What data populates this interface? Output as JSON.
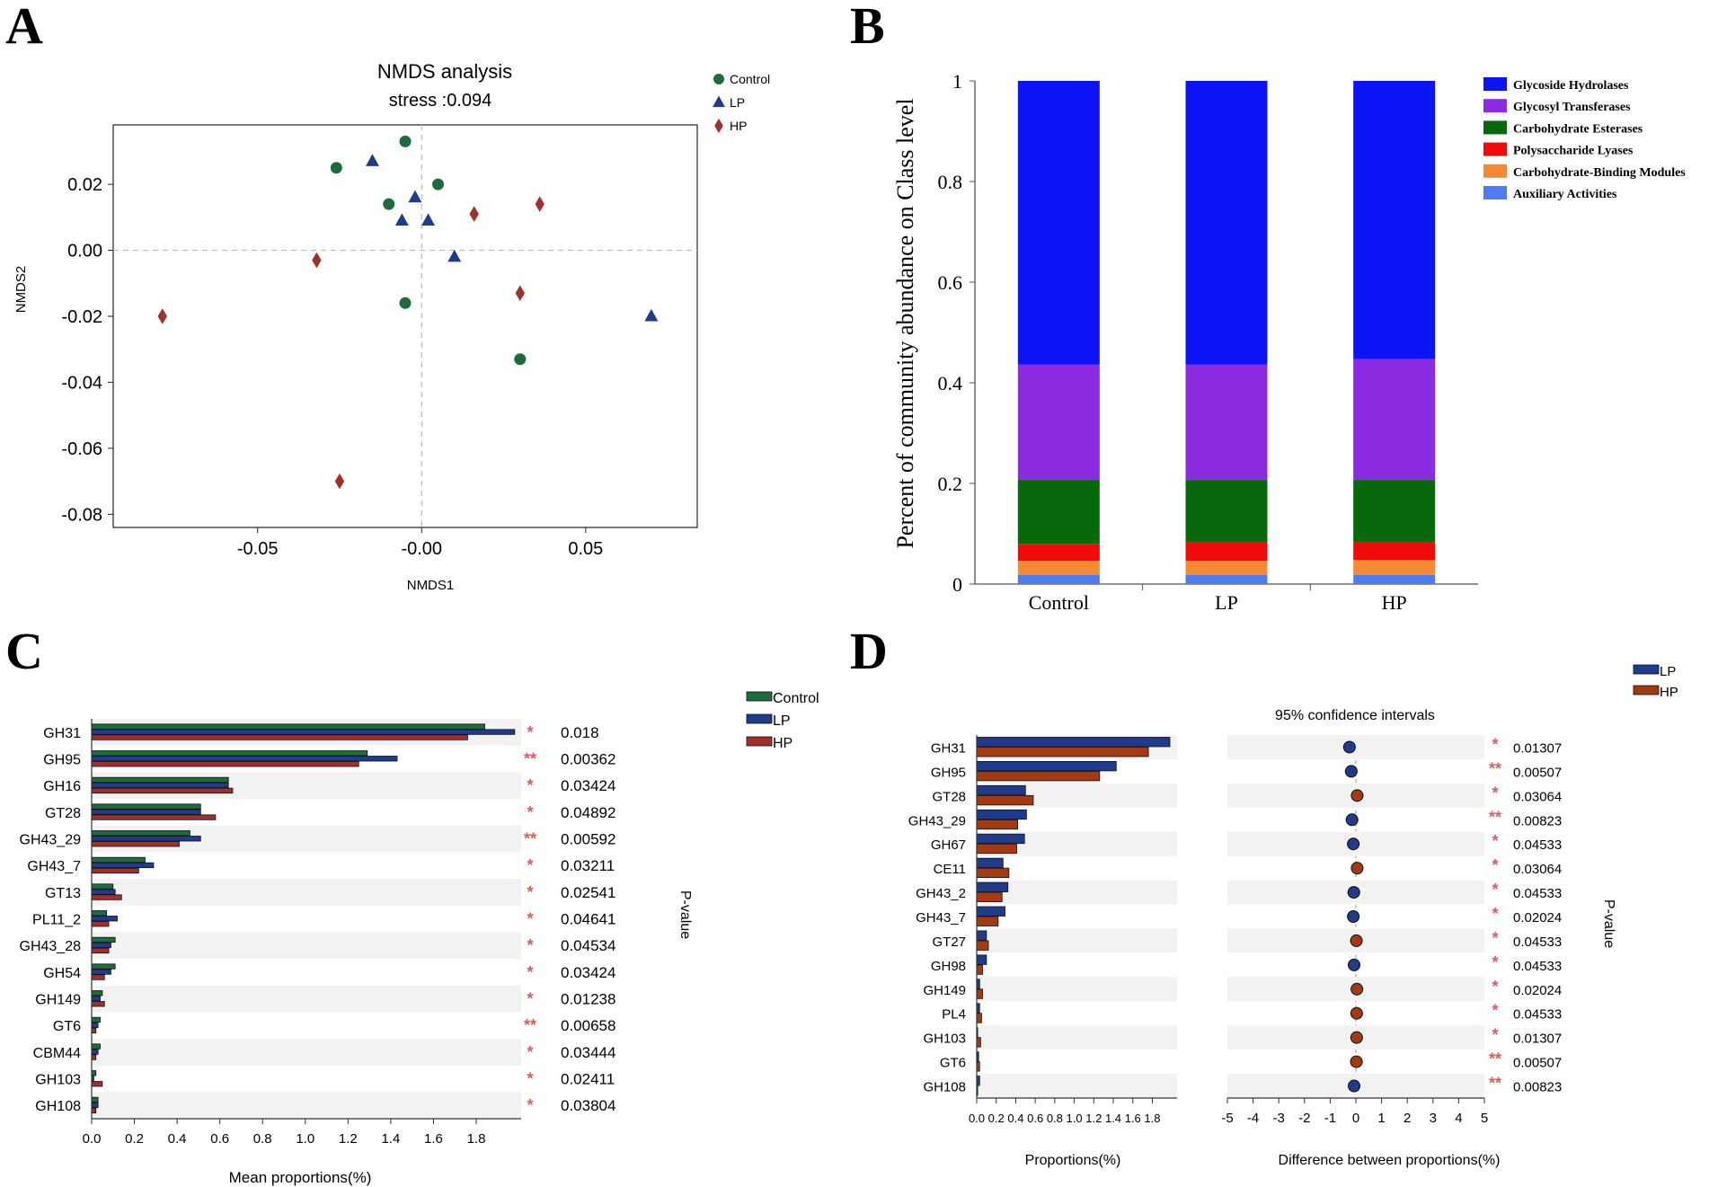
{
  "panels": {
    "a": "A",
    "b": "B",
    "c": "C",
    "d": "D"
  },
  "colors": {
    "control": "#1e6b3c",
    "lp": "#1f3b8c",
    "hp": "#a0302b",
    "hp_d": "#a33a12",
    "star": "#e05a5a",
    "band": "#f2f2f2"
  },
  "chart_data": [
    {
      "id": "A",
      "type": "scatter",
      "title": "NMDS analysis",
      "subtitle": "stress :0.094",
      "xlabel": "NMDS1",
      "ylabel": "NMDS2",
      "xlim": [
        -0.094,
        0.084
      ],
      "ylim": [
        -0.084,
        0.038
      ],
      "xticks": [
        -0.05,
        0,
        0.05
      ],
      "xtick_labels": [
        "-0.05",
        "-0.00",
        "0.05"
      ],
      "yticks": [
        0.02,
        0,
        -0.02,
        -0.04,
        -0.06,
        -0.08
      ],
      "ytick_labels": [
        "0.02",
        "0.00",
        "-0.02",
        "-0.04",
        "-0.06",
        "-0.08"
      ],
      "legend": [
        "Control",
        "LP",
        "HP"
      ],
      "series": [
        {
          "name": "Control",
          "points": [
            [
              -0.026,
              0.025
            ],
            [
              -0.005,
              0.033
            ],
            [
              -0.01,
              0.014
            ],
            [
              0.005,
              0.02
            ],
            [
              -0.005,
              -0.016
            ],
            [
              0.03,
              -0.033
            ]
          ]
        },
        {
          "name": "LP",
          "points": [
            [
              -0.015,
              0.027
            ],
            [
              -0.002,
              0.016
            ],
            [
              -0.006,
              0.009
            ],
            [
              0.002,
              0.009
            ],
            [
              0.01,
              -0.002
            ],
            [
              0.07,
              -0.02
            ]
          ]
        },
        {
          "name": "HP",
          "points": [
            [
              -0.079,
              -0.02
            ],
            [
              -0.032,
              -0.003
            ],
            [
              -0.025,
              -0.07
            ],
            [
              0.016,
              0.011
            ],
            [
              0.036,
              0.014
            ],
            [
              0.03,
              -0.013
            ]
          ]
        }
      ]
    },
    {
      "id": "B",
      "type": "bar",
      "stacked": true,
      "ylabel": "Percent of community abundance on Class level",
      "ylim": [
        0,
        1
      ],
      "yticks": [
        0,
        0.2,
        0.4,
        0.6,
        0.8,
        1
      ],
      "ytick_labels": [
        "0",
        "0.2",
        "0.4",
        "0.6",
        "0.8",
        "1"
      ],
      "categories": [
        "Control",
        "LP",
        "HP"
      ],
      "series": [
        {
          "name": "Auxiliary Activities",
          "color": "#4d7cf0",
          "values": [
            0.018,
            0.018,
            0.018
          ]
        },
        {
          "name": "Carbohydrate-Binding Modules",
          "color": "#f58a32",
          "values": [
            0.028,
            0.028,
            0.03
          ]
        },
        {
          "name": "Polysaccharide Lyases",
          "color": "#f00a0a",
          "values": [
            0.034,
            0.038,
            0.036
          ]
        },
        {
          "name": "Carbohydrate Esterases",
          "color": "#07690b",
          "values": [
            0.127,
            0.123,
            0.123
          ]
        },
        {
          "name": "Glycosyl Transferases",
          "color": "#8a2be2",
          "values": [
            0.229,
            0.229,
            0.24
          ]
        },
        {
          "name": "Glycoside Hydrolases",
          "color": "#0b14f5",
          "values": [
            0.564,
            0.564,
            0.553
          ]
        }
      ]
    },
    {
      "id": "C",
      "type": "bar",
      "orientation": "horizontal",
      "xlabel": "Mean proportions(%)",
      "pvalue_label": "P-value",
      "xlim": [
        0,
        2.0
      ],
      "xticks": [
        0,
        0.2,
        0.4,
        0.6,
        0.8,
        1.0,
        1.2,
        1.4,
        1.6,
        1.8
      ],
      "xtick_labels": [
        "0.0",
        "0.2",
        "0.4",
        "0.6",
        "0.8",
        "1.0",
        "1.2",
        "1.4",
        "1.6",
        "1.8"
      ],
      "legend": [
        "Control",
        "LP",
        "HP"
      ],
      "categories": [
        "GH31",
        "GH95",
        "GH16",
        "GT28",
        "GH43_29",
        "GH43_7",
        "GT13",
        "PL11_2",
        "GH43_28",
        "GH54",
        "GH149",
        "GT6",
        "CBM44",
        "GH103",
        "GH108"
      ],
      "series": [
        {
          "name": "Control",
          "values": [
            1.84,
            1.29,
            0.64,
            0.51,
            0.46,
            0.25,
            0.1,
            0.07,
            0.11,
            0.11,
            0.05,
            0.04,
            0.04,
            0.02,
            0.03
          ]
        },
        {
          "name": "LP",
          "values": [
            1.98,
            1.43,
            0.64,
            0.51,
            0.51,
            0.29,
            0.11,
            0.12,
            0.09,
            0.09,
            0.04,
            0.03,
            0.03,
            0.01,
            0.03
          ]
        },
        {
          "name": "HP",
          "values": [
            1.76,
            1.25,
            0.66,
            0.58,
            0.41,
            0.22,
            0.14,
            0.08,
            0.08,
            0.06,
            0.06,
            0.02,
            0.02,
            0.05,
            0.02
          ]
        }
      ],
      "stars": [
        "*",
        "**",
        "*",
        "*",
        "**",
        "*",
        "*",
        "*",
        "*",
        "*",
        "*",
        "**",
        "*",
        "*",
        "*"
      ],
      "pvalues": [
        "0.018",
        "0.00362",
        "0.03424",
        "0.04892",
        "0.00592",
        "0.03211",
        "0.02541",
        "0.04641",
        "0.04534",
        "0.03424",
        "0.01238",
        "0.00658",
        "0.03444",
        "0.02411",
        "0.03804"
      ]
    },
    {
      "id": "D",
      "type": "bar",
      "orientation": "horizontal",
      "xlabel": "Proportions(%)",
      "xlim": [
        0,
        2.0
      ],
      "xticks": [
        0,
        0.2,
        0.4,
        0.6,
        0.8,
        1.0,
        1.2,
        1.4,
        1.6,
        1.8
      ],
      "xtick_labels": [
        "0.0",
        "0.2",
        "0.4",
        "0.6",
        "0.8",
        "1.0",
        "1.2",
        "1.4",
        "1.6",
        "1.8"
      ],
      "legend": [
        "LP",
        "HP"
      ],
      "categories": [
        "GH31",
        "GH95",
        "GT28",
        "GH43_29",
        "GH67",
        "CE11",
        "GH43_2",
        "GH43_7",
        "GT27",
        "GH98",
        "GH149",
        "PL4",
        "GH103",
        "GT6",
        "GH108"
      ],
      "series": [
        {
          "name": "LP",
          "values": [
            1.98,
            1.43,
            0.5,
            0.51,
            0.49,
            0.27,
            0.32,
            0.29,
            0.1,
            0.1,
            0.03,
            0.03,
            0.01,
            0.02,
            0.03
          ]
        },
        {
          "name": "HP",
          "values": [
            1.76,
            1.26,
            0.58,
            0.42,
            0.41,
            0.33,
            0.26,
            0.22,
            0.12,
            0.06,
            0.06,
            0.05,
            0.04,
            0.03,
            0.01
          ]
        }
      ],
      "ci": {
        "title": "95% confidence intervals",
        "xlabel": "Difference between proportions(%)",
        "xlim": [
          -5,
          5
        ],
        "xticks": [
          -5,
          -4,
          -3,
          -2,
          -1,
          0,
          1,
          2,
          3,
          4,
          5
        ],
        "xtick_labels": [
          "-5",
          "-4",
          "-3",
          "-2",
          "-1",
          "0",
          "1",
          "2",
          "3",
          "4",
          "5"
        ],
        "differences": [
          -0.25,
          -0.18,
          0.05,
          -0.15,
          -0.1,
          0.05,
          -0.08,
          -0.1,
          0.02,
          -0.07,
          0.04,
          0.03,
          0.03,
          0.02,
          -0.07
        ],
        "favors": [
          "LP",
          "LP",
          "HP",
          "LP",
          "LP",
          "HP",
          "LP",
          "LP",
          "HP",
          "LP",
          "HP",
          "HP",
          "HP",
          "HP",
          "LP"
        ]
      },
      "pvalue_label": "P-value",
      "stars": [
        "*",
        "**",
        "*",
        "**",
        "*",
        "*",
        "*",
        "*",
        "*",
        "*",
        "*",
        "*",
        "*",
        "**",
        "**"
      ],
      "pvalues": [
        "0.01307",
        "0.00507",
        "0.03064",
        "0.00823",
        "0.04533",
        "0.03064",
        "0.04533",
        "0.02024",
        "0.04533",
        "0.04533",
        "0.02024",
        "0.04533",
        "0.01307",
        "0.00507",
        "0.00823"
      ]
    }
  ]
}
